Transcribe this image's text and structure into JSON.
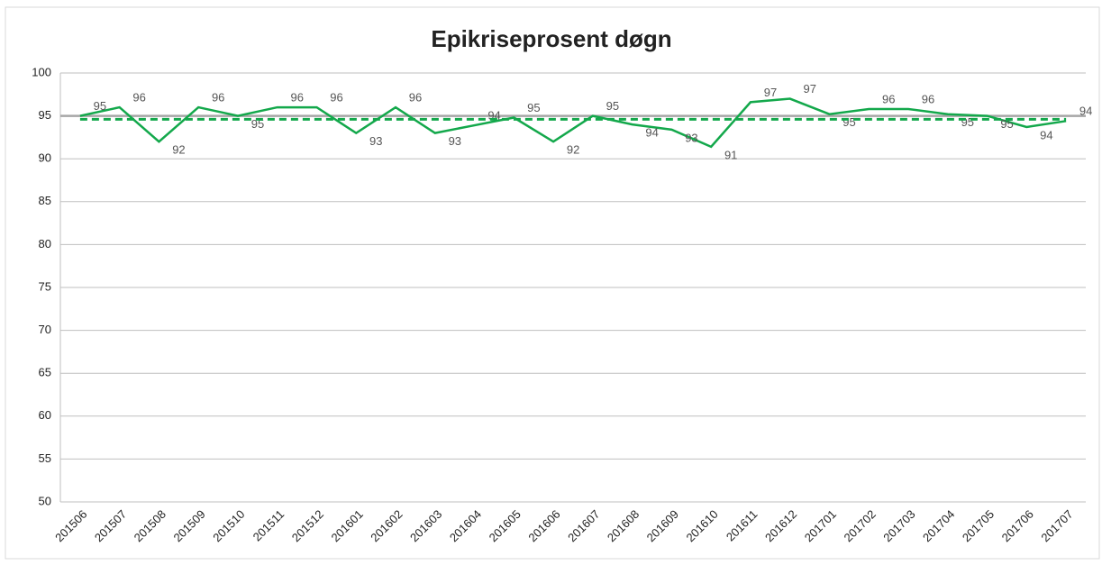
{
  "chart_data": {
    "type": "line",
    "title": "Epikriseprosent døgn",
    "categories": [
      "201506",
      "201507",
      "201508",
      "201509",
      "201510",
      "201511",
      "201512",
      "201601",
      "201602",
      "201603",
      "201604",
      "201605",
      "201606",
      "201607",
      "201608",
      "201609",
      "201610",
      "201611",
      "201612",
      "201701",
      "201702",
      "201703",
      "201704",
      "201705",
      "201706",
      "201707"
    ],
    "series": [
      {
        "color": "#13a84b",
        "values": [
          95,
          96,
          92,
          96,
          95,
          96,
          96,
          93,
          96,
          93,
          93.9,
          94.8,
          92,
          95,
          94,
          93.4,
          91.4,
          96.6,
          97,
          95.2,
          95.8,
          95.8,
          95.2,
          95,
          93.7,
          94.4
        ],
        "value_labels": [
          "95",
          "96",
          "92",
          "96",
          "95",
          "96",
          "96",
          "93",
          "96",
          "93",
          "94",
          "95",
          "92",
          "95",
          "94",
          "93",
          "91",
          "97",
          "97",
          "95",
          "96",
          "96",
          "95",
          "95",
          "94",
          "94"
        ]
      },
      {
        "color": "#13a84b",
        "dashed": true,
        "values": [
          94.6,
          94.6,
          94.6,
          94.6,
          94.6,
          94.6,
          94.6,
          94.6,
          94.6,
          94.6,
          94.6,
          94.6,
          94.6,
          94.6,
          94.6,
          94.6,
          94.6,
          94.6,
          94.6,
          94.6,
          94.6,
          94.6,
          94.6,
          94.6,
          94.6,
          94.6
        ]
      }
    ],
    "reference_line": 95,
    "ylim": [
      50,
      100
    ],
    "yticks": [
      50,
      55,
      60,
      65,
      70,
      75,
      80,
      85,
      90,
      95,
      100
    ],
    "grid": true
  }
}
